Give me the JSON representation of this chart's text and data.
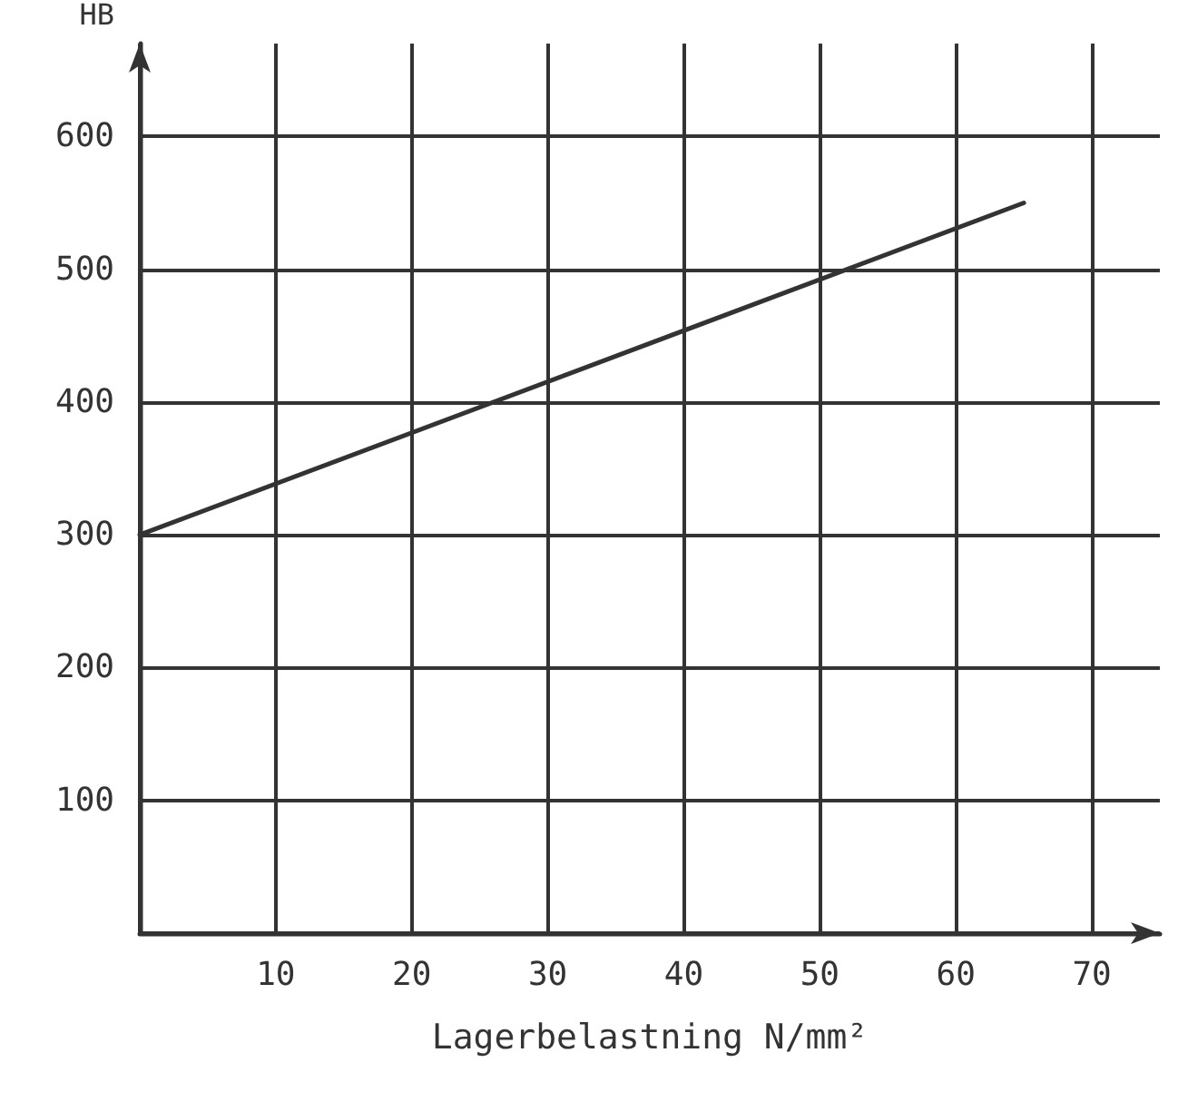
{
  "chart_data": {
    "type": "line",
    "xlabel": "Lagerbelastning N/mm²",
    "ylabel": "HB",
    "x": [
      0,
      65
    ],
    "series": [
      {
        "color": "#333333",
        "values": [
          300,
          550
        ]
      }
    ],
    "xlim": [
      0,
      75
    ],
    "xticks": [
      {
        "value": 0,
        "label": null
      },
      10,
      20,
      30,
      40,
      50,
      60,
      70
    ],
    "ylim": [
      0,
      670
    ],
    "yticks": [
      {
        "value": 0,
        "label": null
      },
      100,
      200,
      300,
      400,
      500,
      600
    ],
    "grid": true,
    "marker": "none",
    "line_style": "solid"
  }
}
